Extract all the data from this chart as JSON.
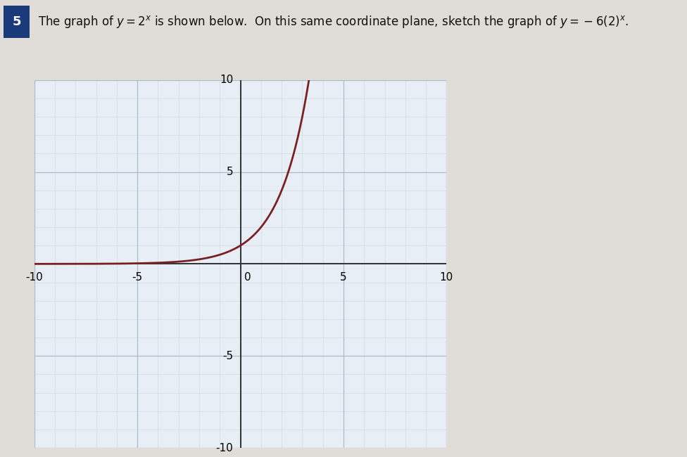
{
  "title_text": "The graph of $y = 2^x$ is shown below.  On this same coordinate plane, sketch the graph of $y = -6(2)^x$.",
  "title_number": "5",
  "xlim": [
    -10,
    10
  ],
  "ylim": [
    -10,
    10
  ],
  "xticks_major": [
    -10,
    -5,
    0,
    5,
    10
  ],
  "yticks_major": [
    -10,
    -5,
    0,
    5,
    10
  ],
  "curve_color": "#7B2020",
  "curve_linewidth": 2.0,
  "axis_color": "#333333",
  "grid_major_color": "#aabbcc",
  "grid_minor_color": "#c8d8e8",
  "plot_bg_color": "#e8eef5",
  "outer_bg_color": "#e0ddd8",
  "header_bg_color": "#f5f5f5",
  "badge_bg_color": "#1a3a7a",
  "badge_text_color": "#ffffff",
  "header_text_color": "#111111",
  "tick_label_fontsize": 11,
  "header_fontsize": 12
}
